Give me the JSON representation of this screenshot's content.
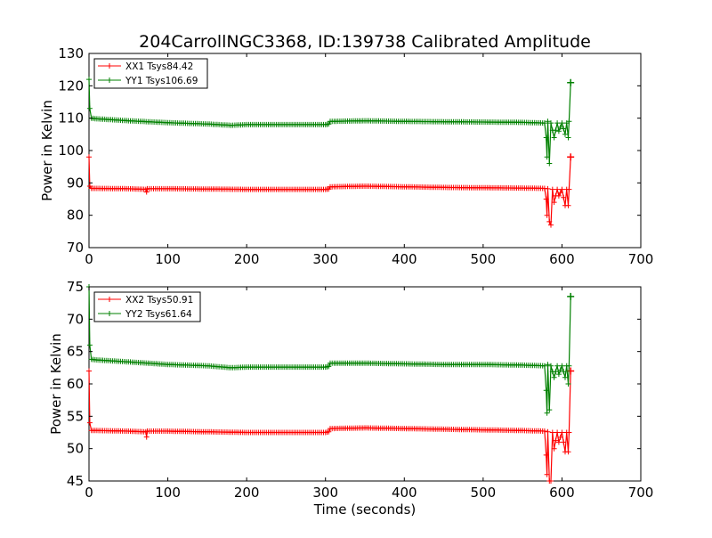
{
  "title": "204CarrollNGC3368, ID:139738 Calibrated Amplitude",
  "xlabel": "Time (seconds)",
  "colors": {
    "xx": "#ff0000",
    "yy": "#008000"
  },
  "chart_data": [
    {
      "type": "line",
      "ylabel": "Power in Kelvin",
      "xlim": [
        0,
        700
      ],
      "ylim": [
        70,
        130
      ],
      "xticks": [
        "0",
        "100",
        "200",
        "300",
        "400",
        "500",
        "600",
        "700"
      ],
      "yticks": [
        "70",
        "80",
        "90",
        "100",
        "110",
        "120",
        "130"
      ],
      "legend_position": "top-left",
      "series": [
        {
          "name": "XX1 Tsys84.42",
          "color": "#ff0000",
          "marker": "+",
          "points": [
            [
              0,
              98
            ],
            [
              1,
              89
            ],
            [
              3,
              88.3
            ],
            [
              10,
              88.3
            ],
            [
              50,
              88.2
            ],
            [
              72,
              88.0
            ],
            [
              73,
              87.2
            ],
            [
              74,
              88.2
            ],
            [
              100,
              88.2
            ],
            [
              150,
              88.1
            ],
            [
              200,
              88.0
            ],
            [
              250,
              88.0
            ],
            [
              300,
              88.0
            ],
            [
              304,
              88.1
            ],
            [
              306,
              88.8
            ],
            [
              350,
              89.0
            ],
            [
              400,
              88.8
            ],
            [
              450,
              88.6
            ],
            [
              500,
              88.5
            ],
            [
              550,
              88.4
            ],
            [
              578,
              88.3
            ],
            [
              580,
              85
            ],
            [
              581,
              80
            ],
            [
              582,
              88.2
            ],
            [
              584,
              78
            ],
            [
              586,
              77
            ],
            [
              588,
              88
            ],
            [
              590,
              84
            ],
            [
              594,
              88
            ],
            [
              596,
              86
            ],
            [
              600,
              88
            ],
            [
              604,
              83
            ],
            [
              606,
              88
            ],
            [
              608,
              83
            ],
            [
              609,
              88
            ],
            [
              611,
              98
            ]
          ]
        },
        {
          "name": "YY1 Tsys106.69",
          "color": "#008000",
          "marker": "+",
          "points": [
            [
              0,
              122
            ],
            [
              1,
              113
            ],
            [
              3,
              110
            ],
            [
              10,
              109.8
            ],
            [
              50,
              109.2
            ],
            [
              100,
              108.6
            ],
            [
              150,
              108.2
            ],
            [
              180,
              107.8
            ],
            [
              200,
              108.0
            ],
            [
              250,
              108.0
            ],
            [
              300,
              108.0
            ],
            [
              304,
              108.2
            ],
            [
              306,
              109.0
            ],
            [
              350,
              109.2
            ],
            [
              400,
              109.0
            ],
            [
              450,
              108.9
            ],
            [
              500,
              108.8
            ],
            [
              550,
              108.7
            ],
            [
              578,
              108.5
            ],
            [
              580,
              104
            ],
            [
              581,
              98
            ],
            [
              582,
              109
            ],
            [
              584,
              96
            ],
            [
              586,
              108.5
            ],
            [
              590,
              104
            ],
            [
              594,
              108.5
            ],
            [
              596,
              106
            ],
            [
              600,
              108.5
            ],
            [
              604,
              105
            ],
            [
              606,
              108.5
            ],
            [
              608,
              104
            ],
            [
              609,
              109
            ],
            [
              611,
              121
            ]
          ]
        }
      ]
    },
    {
      "type": "line",
      "ylabel": "Power in Kelvin",
      "xlim": [
        0,
        700
      ],
      "ylim": [
        45,
        75
      ],
      "xticks": [
        "0",
        "100",
        "200",
        "300",
        "400",
        "500",
        "600",
        "700"
      ],
      "yticks": [
        "45",
        "50",
        "55",
        "60",
        "65",
        "70",
        "75"
      ],
      "legend_position": "top-left",
      "series": [
        {
          "name": "XX2 Tsys50.91",
          "color": "#ff0000",
          "marker": "+",
          "points": [
            [
              0,
              62
            ],
            [
              1,
              54
            ],
            [
              3,
              52.8
            ],
            [
              10,
              52.8
            ],
            [
              50,
              52.7
            ],
            [
              72,
              52.6
            ],
            [
              73,
              51.8
            ],
            [
              74,
              52.7
            ],
            [
              100,
              52.7
            ],
            [
              150,
              52.6
            ],
            [
              200,
              52.5
            ],
            [
              250,
              52.5
            ],
            [
              300,
              52.5
            ],
            [
              304,
              52.6
            ],
            [
              306,
              53.1
            ],
            [
              350,
              53.2
            ],
            [
              400,
              53.1
            ],
            [
              450,
              53.0
            ],
            [
              500,
              52.9
            ],
            [
              550,
              52.8
            ],
            [
              578,
              52.7
            ],
            [
              580,
              49
            ],
            [
              581,
              46
            ],
            [
              582,
              52.6
            ],
            [
              584,
              45
            ],
            [
              586,
              45
            ],
            [
              588,
              52.5
            ],
            [
              590,
              50
            ],
            [
              594,
              52.5
            ],
            [
              596,
              51
            ],
            [
              600,
              52.5
            ],
            [
              604,
              49.5
            ],
            [
              606,
              52.5
            ],
            [
              608,
              49.5
            ],
            [
              609,
              52.5
            ],
            [
              611,
              62
            ]
          ]
        },
        {
          "name": "YY2 Tsys61.64",
          "color": "#008000",
          "marker": "+",
          "points": [
            [
              0,
              75
            ],
            [
              1,
              66
            ],
            [
              3,
              63.8
            ],
            [
              10,
              63.7
            ],
            [
              50,
              63.4
            ],
            [
              100,
              63.0
            ],
            [
              150,
              62.8
            ],
            [
              180,
              62.5
            ],
            [
              200,
              62.6
            ],
            [
              250,
              62.6
            ],
            [
              300,
              62.6
            ],
            [
              304,
              62.7
            ],
            [
              306,
              63.2
            ],
            [
              350,
              63.2
            ],
            [
              400,
              63.1
            ],
            [
              450,
              63.0
            ],
            [
              500,
              63.0
            ],
            [
              550,
              62.9
            ],
            [
              578,
              62.8
            ],
            [
              580,
              59
            ],
            [
              581,
              55.5
            ],
            [
              582,
              63
            ],
            [
              584,
              56
            ],
            [
              586,
              62.8
            ],
            [
              590,
              61
            ],
            [
              594,
              62.8
            ],
            [
              596,
              61.5
            ],
            [
              600,
              62.8
            ],
            [
              604,
              61
            ],
            [
              606,
              62.8
            ],
            [
              608,
              60
            ],
            [
              609,
              62.8
            ],
            [
              611,
              73.5
            ]
          ]
        }
      ]
    }
  ]
}
